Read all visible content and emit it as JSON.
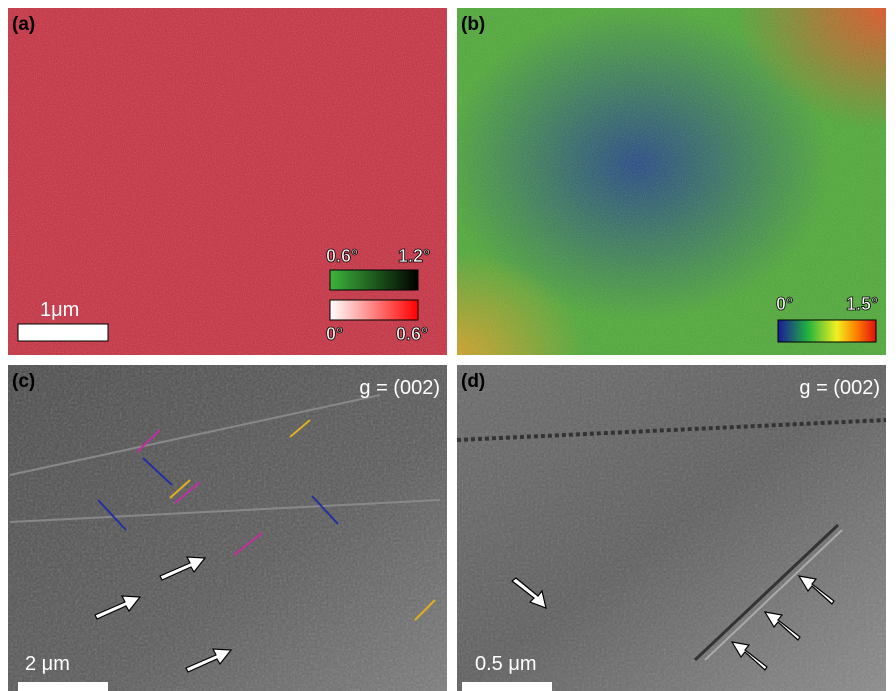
{
  "panels": [
    {
      "label": "(a)",
      "scale_bar": "1μm",
      "legends": [
        {
          "min": "0.6°",
          "max": "1.2°"
        },
        {
          "min": "0°",
          "max": "0.6°"
        }
      ]
    },
    {
      "label": "(b)",
      "legends": [
        {
          "min": "0°",
          "max": "1.5°"
        }
      ]
    },
    {
      "label": "(c)",
      "annotation": "g = (002)",
      "scale_bar": "2 μm"
    },
    {
      "label": "(d)",
      "annotation": "g = (002)",
      "scale_bar": "0.5 μm"
    }
  ]
}
